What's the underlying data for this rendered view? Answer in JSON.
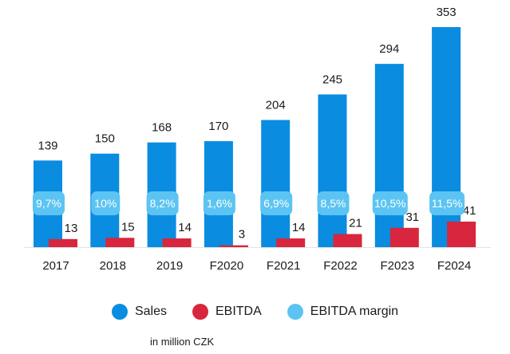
{
  "chart_data": {
    "type": "bar",
    "categories": [
      "2017",
      "2018",
      "2019",
      "F2020",
      "F2021",
      "F2022",
      "F2023",
      "F2024"
    ],
    "series": [
      {
        "name": "Sales",
        "values": [
          139,
          150,
          168,
          170,
          204,
          245,
          294,
          353
        ],
        "color": "#0a8ce0"
      },
      {
        "name": "EBITDA",
        "values": [
          13,
          15,
          14,
          3,
          14,
          21,
          31,
          41
        ],
        "color": "#d7263d"
      }
    ],
    "margin_series": {
      "name": "EBITDA margin",
      "labels": [
        "9,7%",
        "10%",
        "8,2%",
        "1,6%",
        "6,9%",
        "8,5%",
        "10,5%",
        "11,5%"
      ],
      "color": "#5cc4f2"
    },
    "ylim": [
      0,
      353
    ],
    "grid": false,
    "legend_position": "bottom"
  },
  "legend": {
    "items": [
      {
        "label": "Sales",
        "color": "#0a8ce0"
      },
      {
        "label": "EBITDA",
        "color": "#d7263d"
      },
      {
        "label": "EBITDA margin",
        "color": "#5cc4f2"
      }
    ]
  },
  "note": "in million CZK"
}
